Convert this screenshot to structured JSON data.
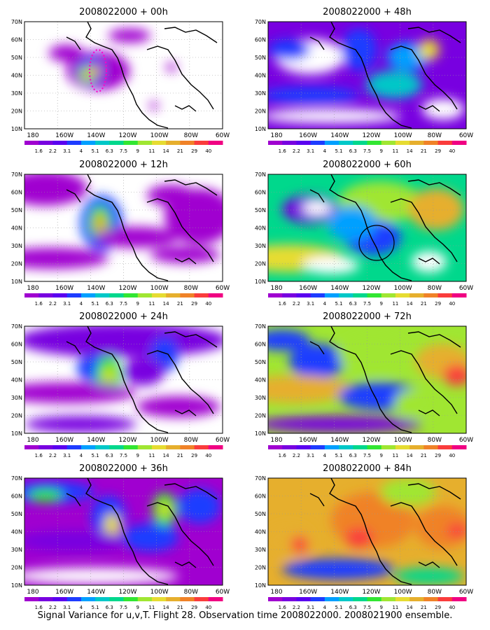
{
  "caption": "Signal Variance for u,v,T. Flight 28. Observation time 2008022000. 2008021900 ensemble.",
  "lat_labels": [
    "70N",
    "60N",
    "50N",
    "40N",
    "30N",
    "20N",
    "10N"
  ],
  "lon_labels": [
    "180",
    "160W",
    "140W",
    "120W",
    "100W",
    "80W",
    "60W"
  ],
  "colorbar": {
    "labels": [
      "1.6",
      "2.2",
      "3.1",
      "4",
      "5.1",
      "6.3",
      "7.5",
      "9",
      "11",
      "14",
      "21",
      "29",
      "40"
    ],
    "colors": [
      "#a000d0",
      "#7800e0",
      "#5a00f0",
      "#1e3cff",
      "#00a0ff",
      "#00c8c8",
      "#00d88c",
      "#32e632",
      "#a0e632",
      "#e6dc32",
      "#e6af2d",
      "#f08228",
      "#fa3c3c",
      "#f00082"
    ]
  },
  "panels": [
    {
      "title": "2008022000 + 00h",
      "fill": "#ffffff"
    },
    {
      "title": "2008022000 + 12h",
      "fill": "#ffffff"
    },
    {
      "title": "2008022000 + 24h",
      "fill": "#ffffff"
    },
    {
      "title": "2008022000 + 36h",
      "fill": "#a000d0"
    },
    {
      "title": "2008022000 + 48h",
      "fill": "#7800e0"
    },
    {
      "title": "2008022000 + 60h",
      "fill": "#00d88c"
    },
    {
      "title": "2008022000 + 72h",
      "fill": "#a0e632"
    },
    {
      "title": "2008022000 + 84h",
      "fill": "#e6af2d"
    }
  ]
}
